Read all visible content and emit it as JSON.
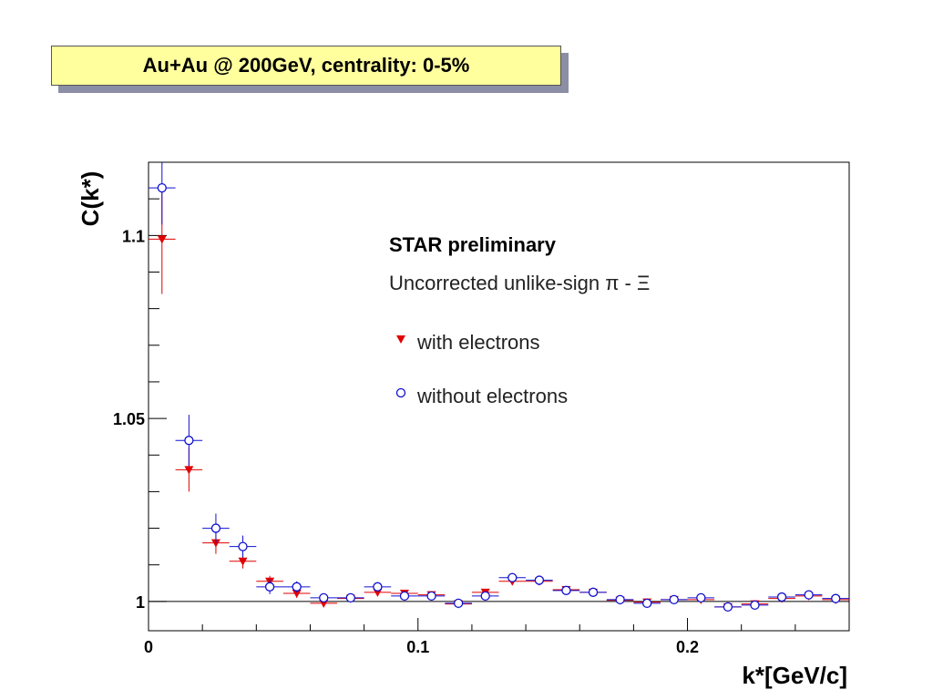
{
  "banner": {
    "text": "Au+Au @ 200GeV, centrality: 0-5%"
  },
  "chart_data": {
    "type": "scatter",
    "title": "",
    "xlabel": "k*[GeV/c]",
    "ylabel": "C(k*)",
    "xlim": [
      0,
      0.26
    ],
    "ylim": [
      0.992,
      1.12
    ],
    "x_ticks": [
      0,
      0.1,
      0.2
    ],
    "x_tick_labels": [
      "0",
      "0.1",
      "0.2"
    ],
    "y_ticks": [
      1,
      1.05,
      1.1
    ],
    "y_tick_labels": [
      "1",
      "1.05",
      "1.1"
    ],
    "reference_line": 1,
    "grid": false,
    "annotations": {
      "header": "STAR preliminary",
      "subheader": "Uncorrected unlike-sign π - Ξ"
    },
    "legend_position": "inside-top-right",
    "series": [
      {
        "name": "with electrons",
        "marker": "triangle-down",
        "color": "#e00000",
        "points": [
          {
            "x": 0.005,
            "y": 1.099,
            "err": 0.015
          },
          {
            "x": 0.015,
            "y": 1.036,
            "err": 0.006
          },
          {
            "x": 0.025,
            "y": 1.016,
            "err": 0.003
          },
          {
            "x": 0.035,
            "y": 1.011,
            "err": 0.002
          },
          {
            "x": 0.045,
            "y": 1.0055,
            "err": 0.0015
          },
          {
            "x": 0.055,
            "y": 1.0022,
            "err": 0.0012
          },
          {
            "x": 0.065,
            "y": 0.9995,
            "err": 0.001
          },
          {
            "x": 0.075,
            "y": 1.0008,
            "err": 0.001
          },
          {
            "x": 0.085,
            "y": 1.0025,
            "err": 0.0008
          },
          {
            "x": 0.095,
            "y": 1.0022,
            "err": 0.0008
          },
          {
            "x": 0.105,
            "y": 1.0018,
            "err": 0.0008
          },
          {
            "x": 0.115,
            "y": 0.9993,
            "err": 0.0008
          },
          {
            "x": 0.125,
            "y": 1.0025,
            "err": 0.0008
          },
          {
            "x": 0.135,
            "y": 1.0055,
            "err": 0.0008
          },
          {
            "x": 0.145,
            "y": 1.0055,
            "err": 0.0008
          },
          {
            "x": 0.155,
            "y": 1.0032,
            "err": 0.0008
          },
          {
            "x": 0.165,
            "y": 1.0025,
            "err": 0.0008
          },
          {
            "x": 0.175,
            "y": 1.0003,
            "err": 0.0008
          },
          {
            "x": 0.185,
            "y": 0.9998,
            "err": 0.0008
          },
          {
            "x": 0.195,
            "y": 1.0005,
            "err": 0.0008
          },
          {
            "x": 0.205,
            "y": 1.0005,
            "err": 0.0008
          },
          {
            "x": 0.215,
            "y": 0.9985,
            "err": 0.0008
          },
          {
            "x": 0.225,
            "y": 0.9993,
            "err": 0.0008
          },
          {
            "x": 0.235,
            "y": 1.0008,
            "err": 0.0008
          },
          {
            "x": 0.245,
            "y": 1.0015,
            "err": 0.0008
          },
          {
            "x": 0.255,
            "y": 1.0005,
            "err": 0.0008
          }
        ]
      },
      {
        "name": "without electrons",
        "marker": "circle-open",
        "color": "#1010d0",
        "points": [
          {
            "x": 0.005,
            "y": 1.113,
            "err": 0.01
          },
          {
            "x": 0.015,
            "y": 1.044,
            "err": 0.007
          },
          {
            "x": 0.025,
            "y": 1.02,
            "err": 0.004
          },
          {
            "x": 0.035,
            "y": 1.015,
            "err": 0.003
          },
          {
            "x": 0.045,
            "y": 1.004,
            "err": 0.002
          },
          {
            "x": 0.055,
            "y": 1.004,
            "err": 0.0015
          },
          {
            "x": 0.065,
            "y": 1.001,
            "err": 0.0012
          },
          {
            "x": 0.075,
            "y": 1.001,
            "err": 0.001
          },
          {
            "x": 0.085,
            "y": 1.004,
            "err": 0.001
          },
          {
            "x": 0.095,
            "y": 1.0015,
            "err": 0.001
          },
          {
            "x": 0.105,
            "y": 1.0015,
            "err": 0.001
          },
          {
            "x": 0.115,
            "y": 0.9995,
            "err": 0.001
          },
          {
            "x": 0.125,
            "y": 1.0015,
            "err": 0.001
          },
          {
            "x": 0.135,
            "y": 1.0065,
            "err": 0.001
          },
          {
            "x": 0.145,
            "y": 1.0058,
            "err": 0.001
          },
          {
            "x": 0.155,
            "y": 1.003,
            "err": 0.001
          },
          {
            "x": 0.165,
            "y": 1.0025,
            "err": 0.001
          },
          {
            "x": 0.175,
            "y": 1.0005,
            "err": 0.001
          },
          {
            "x": 0.185,
            "y": 0.9995,
            "err": 0.001
          },
          {
            "x": 0.195,
            "y": 1.0005,
            "err": 0.001
          },
          {
            "x": 0.205,
            "y": 1.001,
            "err": 0.001
          },
          {
            "x": 0.215,
            "y": 0.9985,
            "err": 0.001
          },
          {
            "x": 0.225,
            "y": 0.999,
            "err": 0.001
          },
          {
            "x": 0.235,
            "y": 1.0012,
            "err": 0.001
          },
          {
            "x": 0.245,
            "y": 1.0018,
            "err": 0.001
          },
          {
            "x": 0.255,
            "y": 1.0008,
            "err": 0.001
          }
        ]
      }
    ]
  }
}
